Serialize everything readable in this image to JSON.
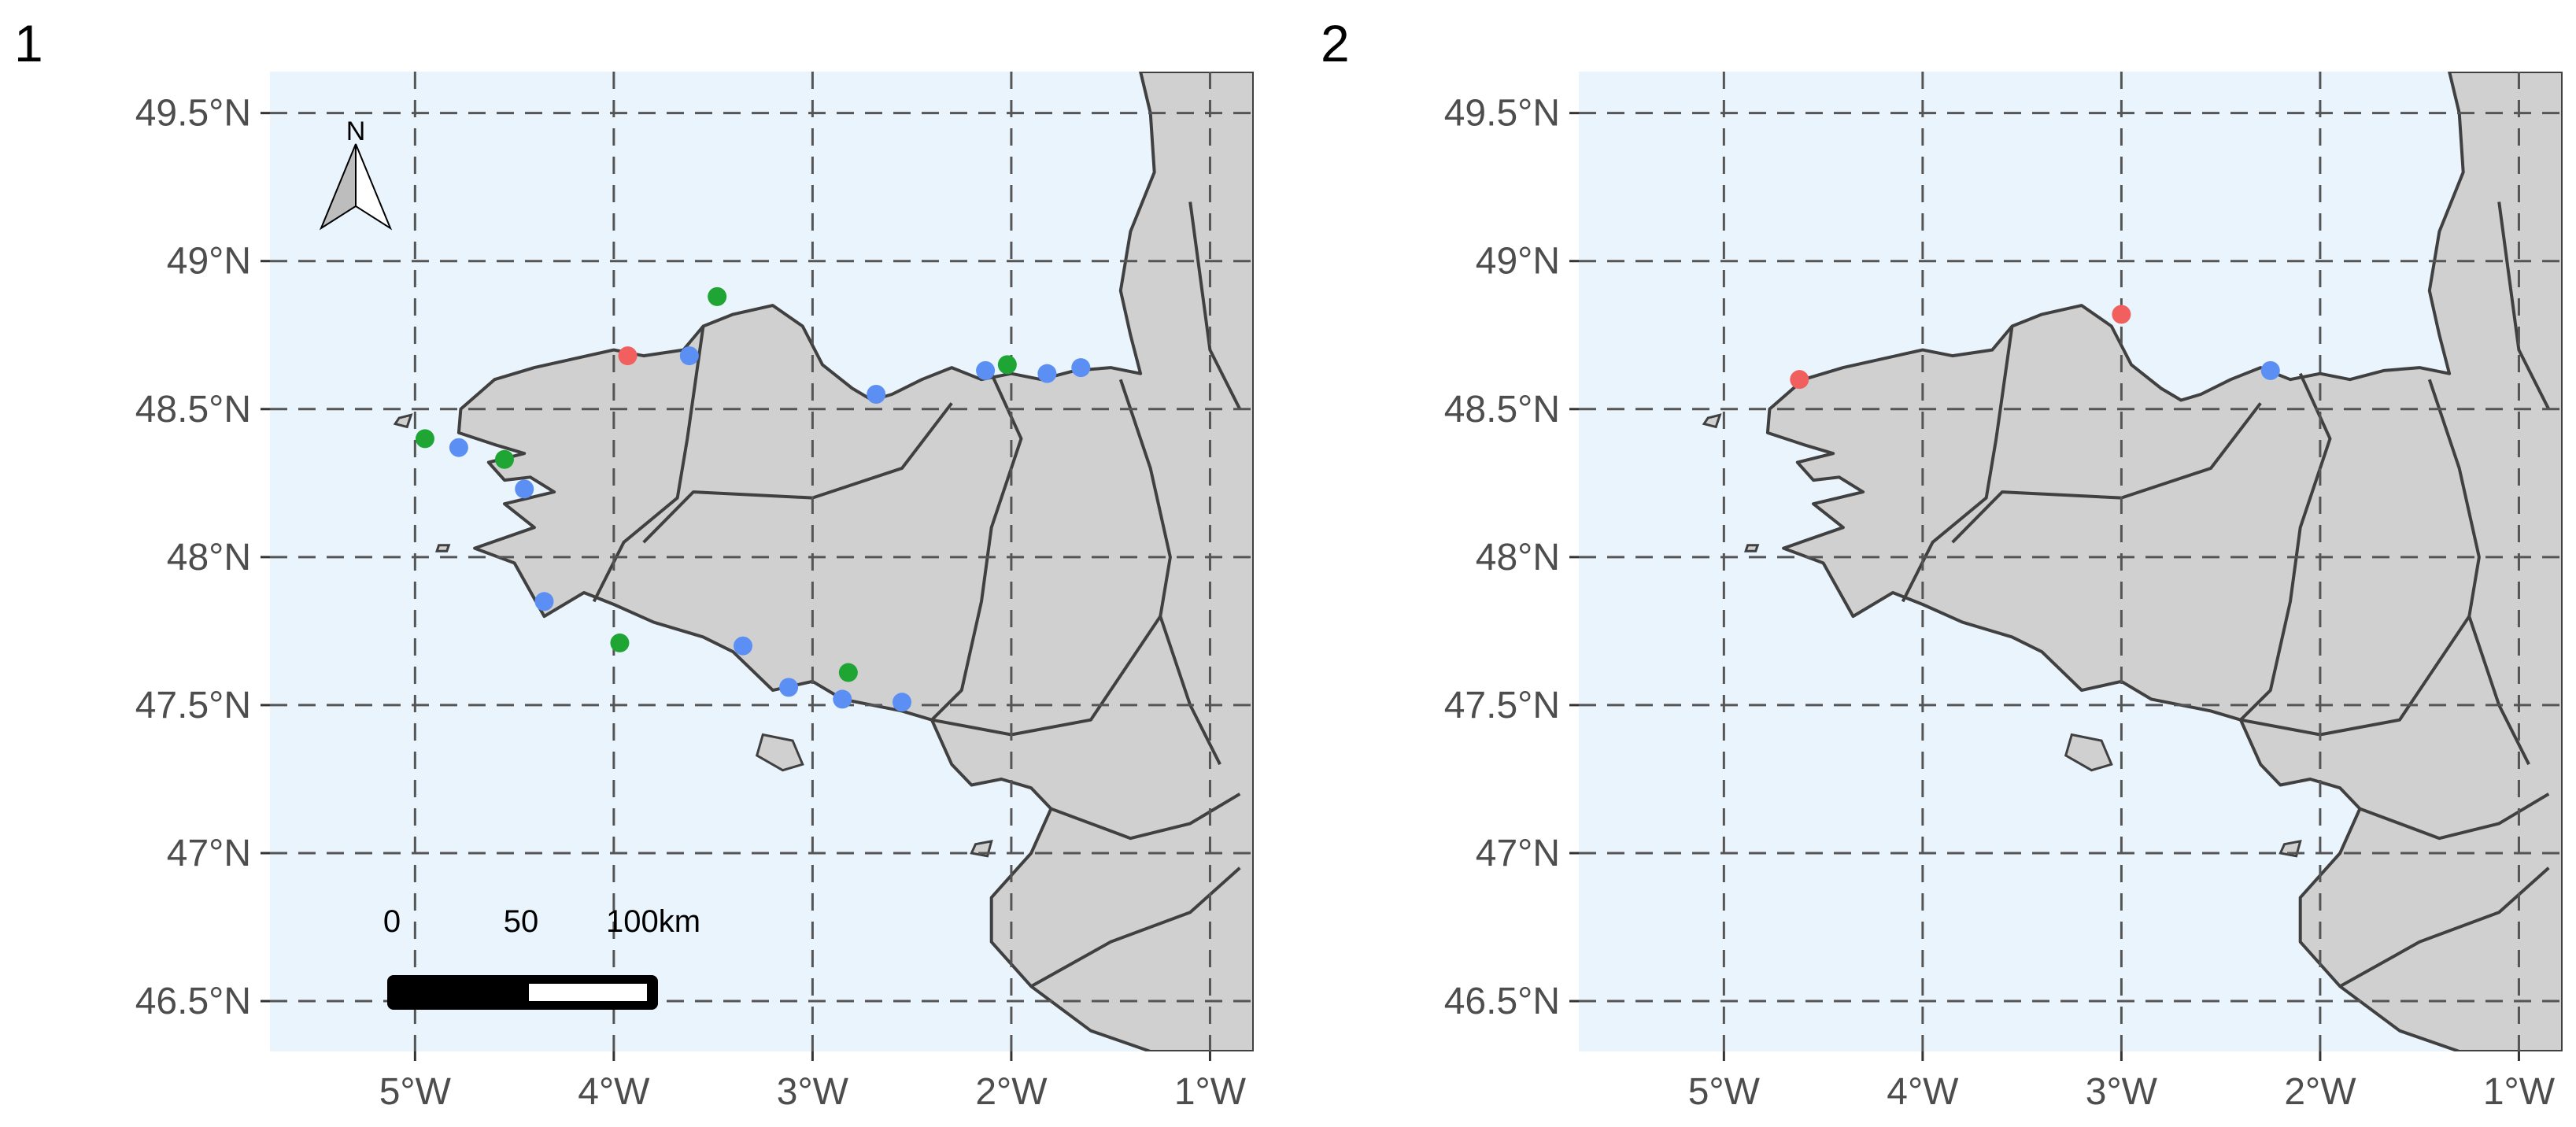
{
  "panels": [
    {
      "tag": "1",
      "show_north_arrow": true,
      "show_scale_bar": true,
      "points": [
        {
          "lon": -4.95,
          "lat": 48.4,
          "color": "green"
        },
        {
          "lon": -4.78,
          "lat": 48.37,
          "color": "blue"
        },
        {
          "lon": -4.55,
          "lat": 48.33,
          "color": "green"
        },
        {
          "lon": -4.45,
          "lat": 48.23,
          "color": "blue"
        },
        {
          "lon": -4.35,
          "lat": 47.85,
          "color": "blue"
        },
        {
          "lon": -3.97,
          "lat": 47.71,
          "color": "green"
        },
        {
          "lon": -3.93,
          "lat": 48.68,
          "color": "red"
        },
        {
          "lon": -3.62,
          "lat": 48.68,
          "color": "blue"
        },
        {
          "lon": -3.48,
          "lat": 48.88,
          "color": "green"
        },
        {
          "lon": -3.35,
          "lat": 47.7,
          "color": "blue"
        },
        {
          "lon": -3.12,
          "lat": 47.56,
          "color": "blue"
        },
        {
          "lon": -2.85,
          "lat": 47.52,
          "color": "blue"
        },
        {
          "lon": -2.82,
          "lat": 47.61,
          "color": "green"
        },
        {
          "lon": -2.68,
          "lat": 48.55,
          "color": "blue"
        },
        {
          "lon": -2.55,
          "lat": 47.51,
          "color": "blue"
        },
        {
          "lon": -2.13,
          "lat": 48.63,
          "color": "blue"
        },
        {
          "lon": -2.02,
          "lat": 48.65,
          "color": "green"
        },
        {
          "lon": -1.82,
          "lat": 48.62,
          "color": "blue"
        },
        {
          "lon": -1.65,
          "lat": 48.64,
          "color": "blue"
        }
      ]
    },
    {
      "tag": "2",
      "show_north_arrow": false,
      "show_scale_bar": false,
      "points": [
        {
          "lon": -4.62,
          "lat": 48.6,
          "color": "red"
        },
        {
          "lon": -3.0,
          "lat": 48.82,
          "color": "red"
        },
        {
          "lon": -2.25,
          "lat": 48.63,
          "color": "blue"
        }
      ]
    }
  ],
  "axes": {
    "lon_range": [
      -5.73,
      -0.78
    ],
    "lat_range": [
      46.33,
      49.64
    ],
    "lon_ticks": [
      {
        "value": -5,
        "label": "5°W"
      },
      {
        "value": -4,
        "label": "4°W"
      },
      {
        "value": -3,
        "label": "3°W"
      },
      {
        "value": -2,
        "label": "2°W"
      },
      {
        "value": -1,
        "label": "1°W"
      }
    ],
    "lat_ticks": [
      {
        "value": 49.5,
        "label": "49.5°N"
      },
      {
        "value": 49.0,
        "label": "49°N"
      },
      {
        "value": 48.5,
        "label": "48.5°N"
      },
      {
        "value": 48.0,
        "label": "48°N"
      },
      {
        "value": 47.5,
        "label": "47.5°N"
      },
      {
        "value": 47.0,
        "label": "47°N"
      },
      {
        "value": 46.5,
        "label": "46.5°N"
      }
    ]
  },
  "north_arrow": {
    "label": "N"
  },
  "scale_bar": {
    "labels": [
      "0",
      "50",
      "100km"
    ]
  },
  "colors": {
    "sea": "#EAF4FD",
    "land": "#D0D0D0",
    "border": "#404040",
    "grid": "#555555",
    "axis_text": "#4D4D4D",
    "green": "#1EA534",
    "blue": "#5B8FF4",
    "red": "#F15F5E"
  }
}
